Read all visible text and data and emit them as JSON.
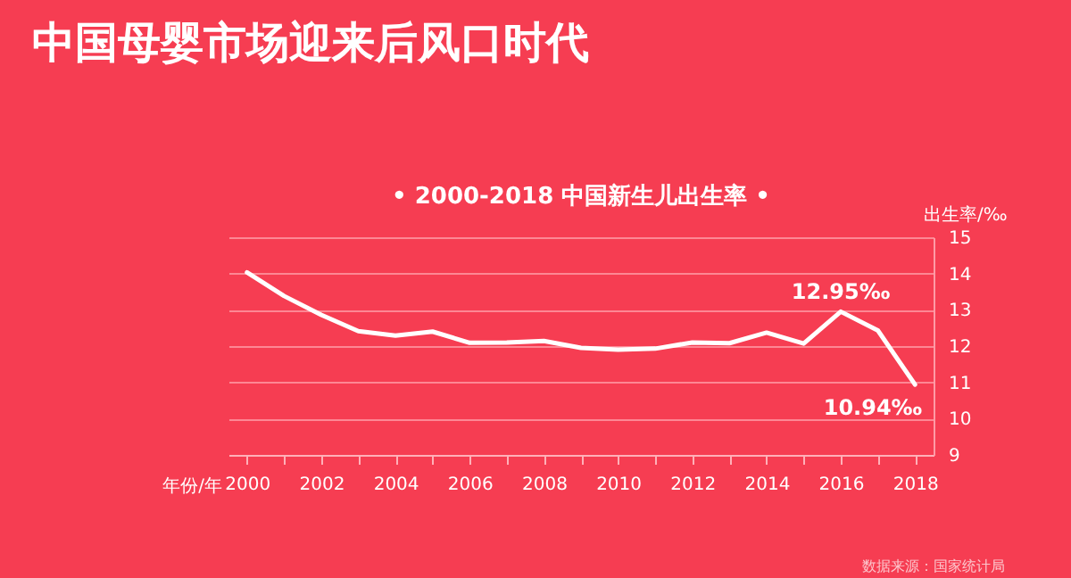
{
  "chart_data": {
    "type": "line",
    "title": "中国母婴市场迎来后风口时代",
    "subtitle": "• 2000-2018 中国新生儿出生率 •",
    "xlabel": "年份/年",
    "ylabel": "出生率/‰",
    "x": [
      2000,
      2001,
      2002,
      2003,
      2004,
      2005,
      2006,
      2007,
      2008,
      2009,
      2010,
      2011,
      2012,
      2013,
      2014,
      2015,
      2016,
      2017,
      2018
    ],
    "series": [
      {
        "color": "#ffffff",
        "values": [
          14.03,
          13.38,
          12.86,
          12.41,
          12.29,
          12.4,
          12.09,
          12.1,
          12.14,
          11.95,
          11.9,
          11.93,
          12.1,
          12.08,
          12.37,
          12.07,
          12.95,
          12.43,
          10.94
        ]
      }
    ],
    "xlim": [
      1999.5,
      2018.5
    ],
    "xticks": [
      2000,
      {
        "value": 2001,
        "label": null
      },
      2002,
      {
        "value": 2003,
        "label": null
      },
      2004,
      {
        "value": 2005,
        "label": null
      },
      2006,
      {
        "value": 2007,
        "label": null
      },
      2008,
      {
        "value": 2009,
        "label": null
      },
      2010,
      {
        "value": 2011,
        "label": null
      },
      2012,
      {
        "value": 2013,
        "label": null
      },
      2014,
      {
        "value": 2015,
        "label": null
      },
      2016,
      {
        "value": 2017,
        "label": null
      },
      2018
    ],
    "ylim": [
      9,
      15
    ],
    "yticks": [
      9,
      10,
      11,
      12,
      13,
      14,
      15
    ],
    "grid": "y",
    "marker": "none",
    "line_style": "solid",
    "annotations": [
      {
        "text": "12.95‰",
        "x": 2016,
        "y": 12.95
      },
      {
        "text": "10.94‰",
        "x": 2018,
        "y": 10.94
      },
      "数据来源：国家统计局"
    ]
  }
}
